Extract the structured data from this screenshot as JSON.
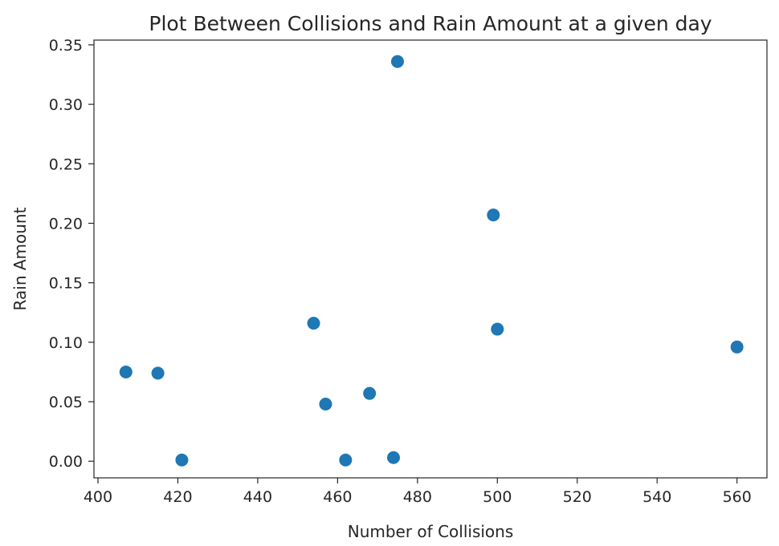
{
  "chart_data": {
    "type": "scatter",
    "title": "Plot Between Collisions and Rain Amount at a given day",
    "xlabel": "Number of Collisions",
    "ylabel": "Rain Amount",
    "xlim": [
      399,
      567.5
    ],
    "ylim": [
      -0.014,
      0.354
    ],
    "xticks": [
      400,
      420,
      440,
      460,
      480,
      500,
      520,
      540,
      560
    ],
    "xtick_labels": [
      "400",
      "420",
      "440",
      "460",
      "480",
      "500",
      "520",
      "540",
      "560"
    ],
    "yticks": [
      0.0,
      0.05,
      0.1,
      0.15,
      0.2,
      0.25,
      0.3,
      0.35
    ],
    "ytick_labels": [
      "0.00",
      "0.05",
      "0.10",
      "0.15",
      "0.20",
      "0.25",
      "0.30",
      "0.35"
    ],
    "grid": false,
    "legend": "none",
    "series": [
      {
        "color": "#1f77b4",
        "points": [
          {
            "x": 407,
            "y": 0.075
          },
          {
            "x": 415,
            "y": 0.074
          },
          {
            "x": 421,
            "y": 0.001
          },
          {
            "x": 454,
            "y": 0.116
          },
          {
            "x": 457,
            "y": 0.048
          },
          {
            "x": 462,
            "y": 0.001
          },
          {
            "x": 468,
            "y": 0.057
          },
          {
            "x": 474,
            "y": 0.003
          },
          {
            "x": 475,
            "y": 0.336
          },
          {
            "x": 499,
            "y": 0.207
          },
          {
            "x": 500,
            "y": 0.111
          },
          {
            "x": 560,
            "y": 0.096
          }
        ]
      }
    ]
  }
}
